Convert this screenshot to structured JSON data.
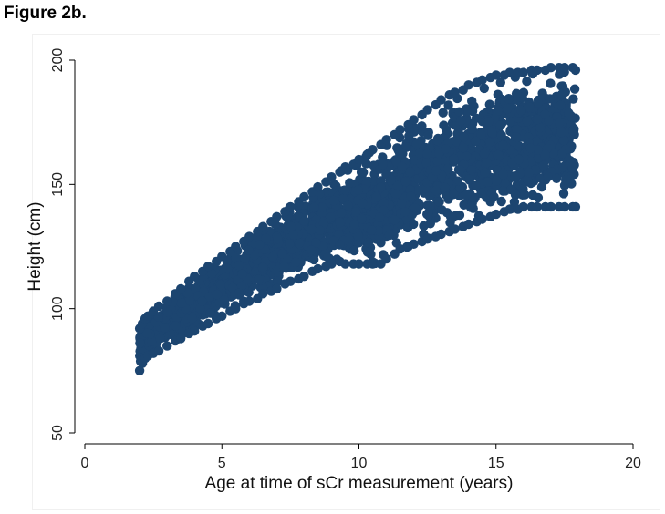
{
  "figure": {
    "title": "Figure 2b."
  },
  "chart_data": {
    "type": "scatter",
    "title": "",
    "xlabel": "Age at time of sCr measurement (years)",
    "ylabel": "Height (cm)",
    "xlim": [
      0,
      20
    ],
    "ylim": [
      50,
      200
    ],
    "xticks": [
      0,
      5,
      10,
      15,
      20
    ],
    "yticks": [
      50,
      100,
      150,
      200
    ],
    "grid": false,
    "legend": "none",
    "marker_color": "#1c4570",
    "series": [
      {
        "points_note_excluded": true,
        "x": [
          2.0,
          2.1,
          2.2,
          2.3,
          2.5,
          2.7,
          3.0,
          3.3,
          3.5,
          3.8,
          4.0,
          4.3,
          4.5,
          4.8,
          5.0,
          5.3,
          5.5,
          5.8,
          6.0,
          6.3,
          6.5,
          6.8,
          7.0,
          7.3,
          7.5,
          7.8,
          8.0,
          8.3,
          8.5,
          8.8,
          9.0,
          9.3,
          9.5,
          9.8,
          10.0,
          10.3,
          10.5,
          10.8,
          11.0,
          11.3,
          11.5,
          11.8,
          12.0,
          12.3,
          12.5,
          12.8,
          13.0,
          13.3,
          13.5,
          13.8,
          14.0,
          14.3,
          14.5,
          14.8,
          15.0,
          15.3,
          15.5,
          15.8,
          16.0,
          16.3,
          16.5,
          16.8,
          17.0,
          17.3,
          17.5,
          17.8,
          17.9
        ],
        "y_low": [
          75,
          78,
          80,
          81,
          82,
          83,
          85,
          87,
          88,
          90,
          91,
          93,
          94,
          96,
          97,
          99,
          100,
          102,
          103,
          104,
          106,
          107,
          108,
          110,
          111,
          112,
          113,
          115,
          116,
          117,
          118,
          119,
          118,
          118,
          118,
          118,
          118,
          118,
          120,
          122,
          124,
          125,
          126,
          127,
          128,
          129,
          130,
          131,
          132,
          133,
          134,
          135,
          136,
          137,
          138,
          139,
          140,
          140,
          141,
          141,
          141,
          141,
          141,
          141,
          141,
          141,
          141
        ],
        "y_high": [
          92,
          94,
          96,
          97,
          99,
          101,
          103,
          106,
          108,
          111,
          113,
          115,
          117,
          119,
          121,
          123,
          125,
          127,
          129,
          131,
          133,
          135,
          137,
          139,
          141,
          143,
          145,
          147,
          149,
          151,
          153,
          155,
          157,
          158,
          160,
          162,
          164,
          166,
          168,
          170,
          172,
          174,
          176,
          178,
          180,
          182,
          184,
          186,
          187,
          188,
          190,
          191,
          192,
          193,
          194,
          194,
          195,
          195,
          195,
          196,
          196,
          196,
          197,
          197,
          197,
          197,
          196
        ]
      }
    ]
  }
}
